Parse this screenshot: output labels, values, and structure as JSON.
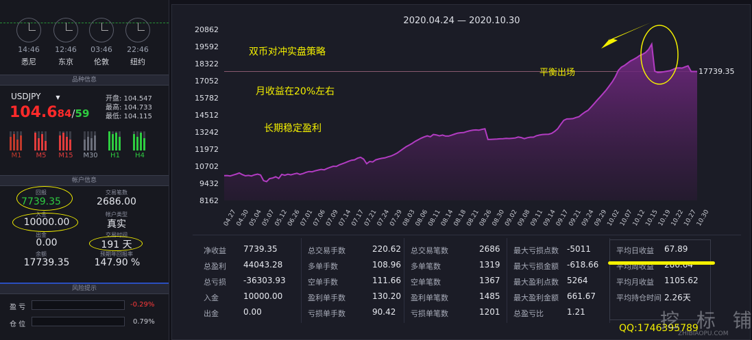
{
  "clocks": [
    {
      "time": "14:46",
      "city": "悉尼"
    },
    {
      "time": "12:46",
      "city": "东京"
    },
    {
      "time": "03:46",
      "city": "伦敦"
    },
    {
      "time": "22:46",
      "city": "纽约"
    }
  ],
  "instrument": {
    "section_title": "品种信息",
    "symbol": "USDJPY",
    "price_big": "104.6",
    "price_red": "84",
    "slash": "/",
    "price_green": "59",
    "open": "开盘: 104.547",
    "high": "最高: 104.733",
    "low": "最低: 104.115",
    "timeframes": [
      {
        "label": "M1",
        "color": "#c0392b"
      },
      {
        "label": "M5",
        "color": "#e23c3c"
      },
      {
        "label": "M15",
        "color": "#e23c3c"
      },
      {
        "label": "M30",
        "color": "#6b6e7a"
      },
      {
        "label": "H1",
        "color": "#2ecc40"
      },
      {
        "label": "H4",
        "color": "#2ecc40"
      }
    ]
  },
  "account": {
    "section_title": "帐户信息",
    "return_label": "回报",
    "return_value": "7739.35",
    "trades_label": "交易笔数",
    "trades_value": "2686.00",
    "deposit_label": "入金",
    "deposit_value": "10000.00",
    "account_type_label": "帐户类型",
    "account_type_value": "真实",
    "withdraw_label": "出金",
    "withdraw_value": "0.00",
    "trade_time_label": "交易时间",
    "trade_time_value": "191 天",
    "balance_label": "余额",
    "balance_value": "17739.35",
    "annual_label": "预期年回报率",
    "annual_value": "147.90 %"
  },
  "risk": {
    "section_title": "风险提示",
    "profit_label": "盈 亏",
    "profit_value": "-0.29%",
    "position_label": "仓 位",
    "position_value": "0.79%"
  },
  "chart": {
    "date_range": "2020.04.24 — 2020.10.30",
    "last_value_label": "17739.35",
    "annotation_1": "双币对冲实盘策略",
    "annotation_2": "月收益在20%左右",
    "annotation_3": "长期稳定盈利",
    "annotation_4": "平衡出场"
  },
  "chart_data": {
    "type": "area",
    "y_ticks": [
      "20862",
      "19592",
      "18322",
      "17052",
      "15782",
      "14512",
      "13242",
      "11972",
      "10702",
      "9432",
      "8162"
    ],
    "ylim": [
      8162,
      20862
    ],
    "x_ticks": [
      "04.27",
      "04.30",
      "05.04",
      "05.07",
      "05.12",
      "06.26",
      "07.01",
      "07.06",
      "07.09",
      "07.14",
      "07.17",
      "07.21",
      "07.24",
      "07.29",
      "08.03",
      "08.06",
      "08.11",
      "08.14",
      "08.18",
      "08.21",
      "08.26",
      "08.30",
      "09.02",
      "09.08",
      "09.11",
      "09.14",
      "09.17",
      "09.21",
      "09.24",
      "09.29",
      "10.02",
      "10.07",
      "10.12",
      "10.15",
      "10.19",
      "10.22",
      "10.27",
      "10.30"
    ],
    "series": [
      {
        "values": [
          10000,
          10010,
          9980,
          10050,
          10120,
          10200,
          10080,
          9990,
          10020,
          9980,
          10060,
          10120,
          10050,
          9630,
          9560,
          9780,
          9830,
          9920,
          9800,
          10100,
          10030,
          10110,
          10060,
          10130,
          10180,
          10100,
          10160,
          10250,
          10310,
          10290,
          10360,
          10420,
          10470,
          10440,
          10540,
          10620,
          10700,
          10690,
          10810,
          10890,
          10970,
          11070,
          11150,
          11180,
          11300,
          11370,
          11230,
          10890,
          11060,
          11020,
          11180,
          11240,
          11290,
          11320,
          11400,
          11460,
          11560,
          11670,
          11830,
          11990,
          12150,
          12270,
          12400,
          12550,
          12670,
          12790,
          12880,
          12960,
          12890,
          13060,
          13030,
          12960,
          13020,
          12940,
          12940,
          13010,
          13090,
          13160,
          13190,
          13200,
          13280,
          13340,
          13380,
          13400,
          13380,
          13440,
          13480,
          12690,
          12700,
          12710,
          12720,
          12740,
          12750,
          12770,
          12760,
          12780,
          12800,
          12870,
          12830,
          12750,
          12820,
          12860,
          12860,
          12970,
          13020,
          13060,
          13070,
          13080,
          13140,
          13290,
          13480,
          13810,
          14110,
          14210,
          14220,
          14240,
          14320,
          14380,
          14560,
          14720,
          14850,
          15090,
          15340,
          15600,
          15850,
          16100,
          16360,
          16660,
          16970,
          17340,
          17820,
          18060,
          18180,
          18350,
          18520,
          18630,
          18760,
          18920,
          19020,
          19150,
          19380,
          19770,
          17770,
          17660,
          17680,
          17720,
          17760,
          17800,
          17880,
          17990,
          18000,
          17990,
          18080,
          18160,
          17740,
          17740,
          17739.35
        ]
      }
    ],
    "reference_line": 17739.35
  },
  "stats": {
    "col1": [
      {
        "k": "净收益",
        "v": "7739.35"
      },
      {
        "k": "总盈利",
        "v": "44043.28"
      },
      {
        "k": "总亏损",
        "v": "-36303.93"
      },
      {
        "k": "入金",
        "v": "10000.00"
      },
      {
        "k": "出金",
        "v": "0.00"
      }
    ],
    "col2": [
      {
        "k": "总交易手数",
        "v": "220.62"
      },
      {
        "k": "多单手数",
        "v": "108.96"
      },
      {
        "k": "空单手数",
        "v": "111.66"
      },
      {
        "k": "盈利单手数",
        "v": "130.20"
      },
      {
        "k": "亏损单手数",
        "v": "90.42"
      }
    ],
    "col3": [
      {
        "k": "总交易笔数",
        "v": "2686"
      },
      {
        "k": "多单笔数",
        "v": "1319"
      },
      {
        "k": "空单笔数",
        "v": "1367"
      },
      {
        "k": "盈利单笔数",
        "v": "1485"
      },
      {
        "k": "亏损单笔数",
        "v": "1201"
      }
    ],
    "col4": [
      {
        "k": "最大亏损点数",
        "v": "-5011"
      },
      {
        "k": "最大亏损金额",
        "v": "-618.66"
      },
      {
        "k": "最大盈利点数",
        "v": "5264"
      },
      {
        "k": "最大盈利金额",
        "v": "661.67"
      },
      {
        "k": "总盈亏比",
        "v": "1.21"
      }
    ],
    "col5": [
      {
        "k": "平均日收益",
        "v": "67.89"
      },
      {
        "k": "平均周收益",
        "v": "286.64"
      },
      {
        "k": "平均月收益",
        "v": "1105.62"
      },
      {
        "k": "平均持仓时间",
        "v": "2.26天"
      }
    ]
  },
  "watermark": {
    "qq": "QQ:1746395789",
    "site_text": "挖 标 铺",
    "site_sub": "ZHIBIAOPU.COM"
  },
  "colors": {
    "line": "#b23cc2",
    "area_top": "#7a2a8a",
    "area_bottom": "#2a1a34",
    "annotation": "#f4f000",
    "red": "#ff2a2a",
    "green": "#2ecc40"
  }
}
